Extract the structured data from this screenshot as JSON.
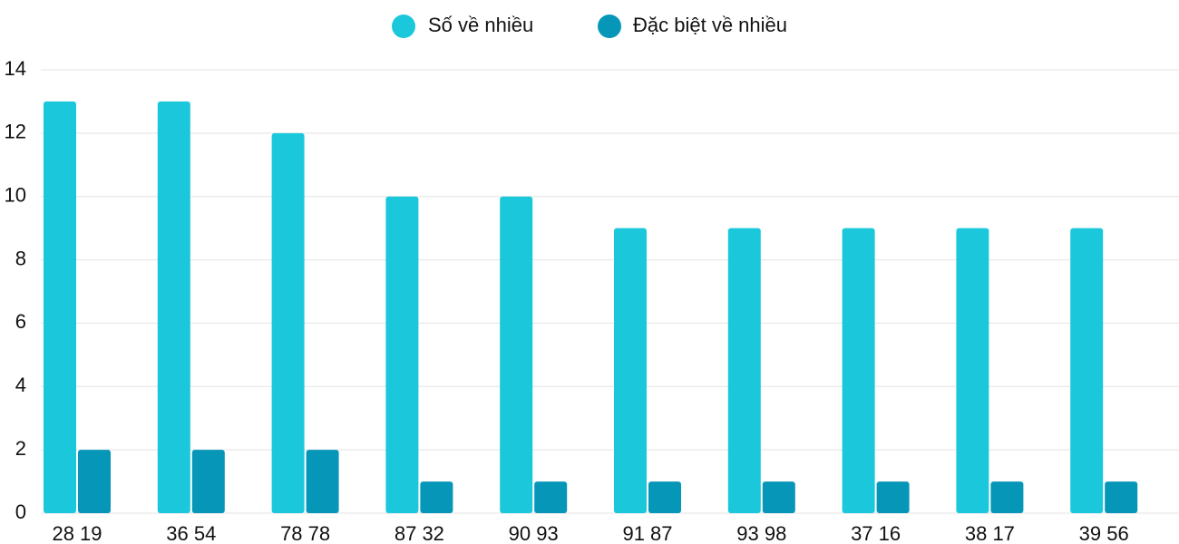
{
  "chart_data": {
    "type": "bar",
    "categories": [
      "28 19",
      "36 54",
      "78 78",
      "87 32",
      "90 93",
      "91 87",
      "93 98",
      "37 16",
      "38 17",
      "39 56"
    ],
    "series": [
      {
        "name": "Số về nhiều",
        "color": "#1bc8db",
        "values": [
          13,
          13,
          12,
          10,
          10,
          9,
          9,
          9,
          9,
          9
        ]
      },
      {
        "name": "Đặc biệt về nhiều",
        "color": "#0696b8",
        "values": [
          2,
          2,
          2,
          1,
          1,
          1,
          1,
          1,
          1,
          1
        ]
      }
    ],
    "ylim": [
      0,
      14
    ],
    "yticks": [
      0,
      2,
      4,
      6,
      8,
      10,
      12,
      14
    ],
    "grid": true,
    "legend": "top"
  }
}
